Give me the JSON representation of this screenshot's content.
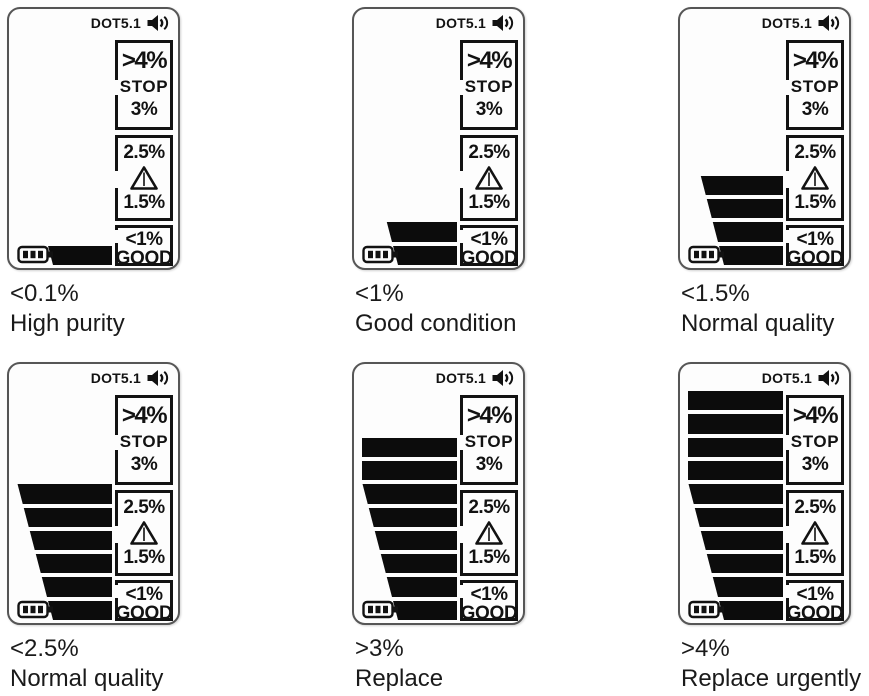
{
  "lcd": {
    "fluid_type": "DOT5.1",
    "scale_high": {
      "over_limit": ">4%",
      "stop": "STOP",
      "limit": "3%"
    },
    "scale_warning": {
      "upper": "2.5%",
      "lower": "1.5%"
    },
    "scale_good": {
      "under": "<1%",
      "label": "GOOD"
    },
    "icons": {
      "speaker": "speaker-icon",
      "warning": "warning-triangle-icon",
      "battery": "battery-icon"
    }
  },
  "panels": [
    {
      "bars": 1,
      "reading": "<0.1%",
      "condition": "High purity"
    },
    {
      "bars": 2,
      "reading": "<1%",
      "condition": "Good condition"
    },
    {
      "bars": 4,
      "reading": "<1.5%",
      "condition": "Normal quality"
    },
    {
      "bars": 6,
      "reading": "<2.5%",
      "condition": "Normal quality"
    },
    {
      "bars": 8,
      "reading": ">3%",
      "condition": "Replace"
    },
    {
      "bars": 10,
      "reading": ">4%",
      "condition": "Replace urgently"
    }
  ],
  "colors": {
    "lcd_ink": "#121212",
    "bar_fill": "#0c0c0c",
    "panel_border": "#565656",
    "panel_background": "#fdfdfd",
    "label_text": "#1a1a1a",
    "page_background": "#ffffff"
  }
}
